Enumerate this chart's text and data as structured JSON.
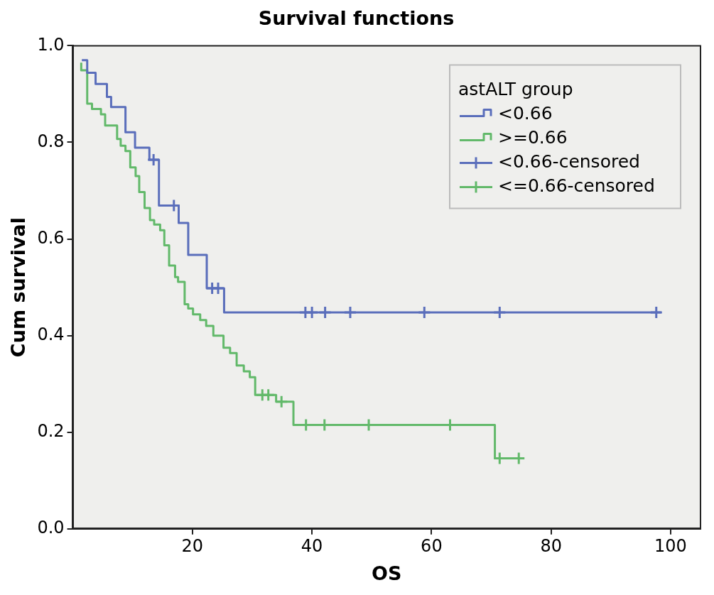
{
  "chart_data": {
    "type": "step",
    "title": "Survival functions",
    "xlabel": "OS",
    "ylabel": "Cum survival",
    "legend_title": "astALT group",
    "legend": "top right",
    "grid": false,
    "xlim": [
      0,
      105
    ],
    "xticks": [
      20,
      40,
      60,
      80,
      100
    ],
    "ylim": [
      0,
      1
    ],
    "yticks": [
      {
        "value": 0,
        "label": "0.0"
      },
      0.2,
      0.4,
      0.6,
      0.8,
      {
        "value": 1,
        "label": "1.0"
      }
    ],
    "series": [
      {
        "name": "<0.66",
        "type": "step",
        "marker": "none",
        "color": "#5a6ebb",
        "x": [
          1.5,
          2.4,
          3.8,
          5.7,
          6.4,
          8.8,
          10.4,
          12.8,
          14.4,
          17.7,
          19.3,
          22.4,
          25.3,
          98.4
        ],
        "values": [
          0.97,
          0.944,
          0.921,
          0.894,
          0.873,
          0.821,
          0.789,
          0.764,
          0.669,
          0.633,
          0.567,
          0.498,
          0.448,
          0.448
        ]
      },
      {
        "name": ">=0.66",
        "type": "step",
        "marker": "none",
        "color": "#62b96a",
        "x": [
          1.4,
          1.4,
          2.4,
          3.2,
          4.7,
          5.4,
          7.4,
          8.0,
          8.8,
          9.6,
          10.5,
          11.1,
          12.0,
          12.9,
          13.6,
          14.6,
          15.3,
          16.1,
          17.1,
          17.6,
          18.7,
          19.3,
          20.1,
          21.3,
          22.3,
          23.5,
          25.2,
          26.3,
          27.4,
          28.6,
          29.6,
          30.5,
          34.0,
          36.9,
          70.6,
          75.0
        ],
        "values": [
          0.965,
          0.949,
          0.88,
          0.869,
          0.858,
          0.835,
          0.807,
          0.793,
          0.782,
          0.748,
          0.73,
          0.697,
          0.664,
          0.639,
          0.63,
          0.618,
          0.587,
          0.545,
          0.521,
          0.511,
          0.465,
          0.456,
          0.444,
          0.432,
          0.42,
          0.4,
          0.375,
          0.364,
          0.338,
          0.326,
          0.314,
          0.277,
          0.263,
          0.215,
          0.146,
          0.146
        ]
      },
      {
        "name": "<0.66-censored",
        "type": "scatter",
        "marker": "cross",
        "color": "#5a6ebb",
        "x": [
          13.5,
          16.9,
          23.3,
          24.3,
          38.9,
          40.0,
          42.2,
          46.4,
          58.8,
          71.4,
          97.6
        ],
        "values": [
          0.764,
          0.669,
          0.498,
          0.498,
          0.448,
          0.448,
          0.448,
          0.448,
          0.448,
          0.448,
          0.448
        ]
      },
      {
        "name": "<=0.66-censored",
        "type": "scatter",
        "marker": "cross",
        "color": "#62b96a",
        "x": [
          31.7,
          32.7,
          34.9,
          39.0,
          42.1,
          49.5,
          63.1,
          71.4,
          74.6
        ],
        "values": [
          0.277,
          0.277,
          0.263,
          0.215,
          0.215,
          0.215,
          0.215,
          0.146,
          0.146
        ]
      }
    ]
  }
}
